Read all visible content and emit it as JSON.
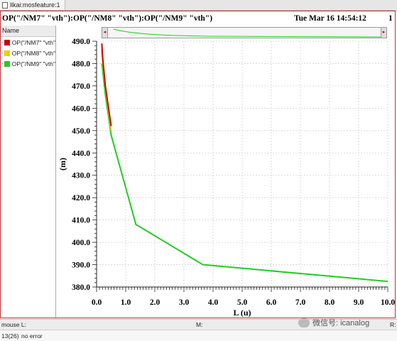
{
  "window": {
    "tab_label": "llkai:mosfeature:1"
  },
  "plot_header": {
    "title": "OP(\"/NM7\" \"vth\"):OP(\"/NM8\" \"vth\"):OP(\"/NM9\" \"vth\")",
    "datetime": "Tue Mar 16 14:54:12",
    "page_number": "1"
  },
  "legend": {
    "header": "Name",
    "items": [
      {
        "dash": "-",
        "label": "OP(\"/NM7\" \"vth\"",
        "color": "#cc0000"
      },
      {
        "dash": "-",
        "label": "OP(\"/NM8\" \"vth\"",
        "color": "#e6d200"
      },
      {
        "dash": "-",
        "label": "OP(\"/NM9\" \"vth\"",
        "color": "#22cc22"
      }
    ]
  },
  "overview": {
    "left_arrow": "◂",
    "right_arrow": "▸"
  },
  "status_bar": {
    "mouse_label": "mouse L:",
    "middle_label": "M:",
    "right_label": "R:"
  },
  "command_bar": {
    "line_number": "13(26)",
    "message": "no error"
  },
  "watermark": {
    "text": "微信号: icanalog"
  },
  "chart_data": {
    "type": "line",
    "title": "OP(\"/NM7\" \"vth\"):OP(\"/NM8\" \"vth\"):OP(\"/NM9\" \"vth\")",
    "xlabel": "L (u)",
    "ylabel": "(m)",
    "xlim": [
      0,
      10
    ],
    "ylim": [
      380,
      490
    ],
    "x_ticks": [
      "0.0",
      "1.0",
      "2.0",
      "3.0",
      "4.0",
      "5.0",
      "6.0",
      "7.0",
      "8.0",
      "9.0",
      "10.0"
    ],
    "y_ticks": [
      "380.0",
      "390.0",
      "400.0",
      "410.0",
      "420.0",
      "430.0",
      "440.0",
      "450.0",
      "460.0",
      "470.0",
      "480.0",
      "490.0"
    ],
    "grid": true,
    "legend_position": "left-panel",
    "series": [
      {
        "name": "OP(\"/NM7\" \"vth\")",
        "color": "#cc0000",
        "x": [
          0.18,
          0.2,
          0.3,
          0.5
        ],
        "y": [
          489,
          484,
          470,
          452
        ]
      },
      {
        "name": "OP(\"/NM8\" \"vth\")",
        "color": "#e6d200",
        "x": [
          0.18,
          0.2,
          0.3,
          0.5
        ],
        "y": [
          486,
          482,
          469,
          450
        ]
      },
      {
        "name": "OP(\"/NM9\" \"vth\")",
        "color": "#22cc22",
        "x": [
          0.18,
          0.2,
          0.3,
          0.5,
          1.35,
          3.65,
          10.0
        ],
        "y": [
          480,
          478,
          466,
          448,
          408,
          390,
          382.5
        ]
      }
    ]
  }
}
